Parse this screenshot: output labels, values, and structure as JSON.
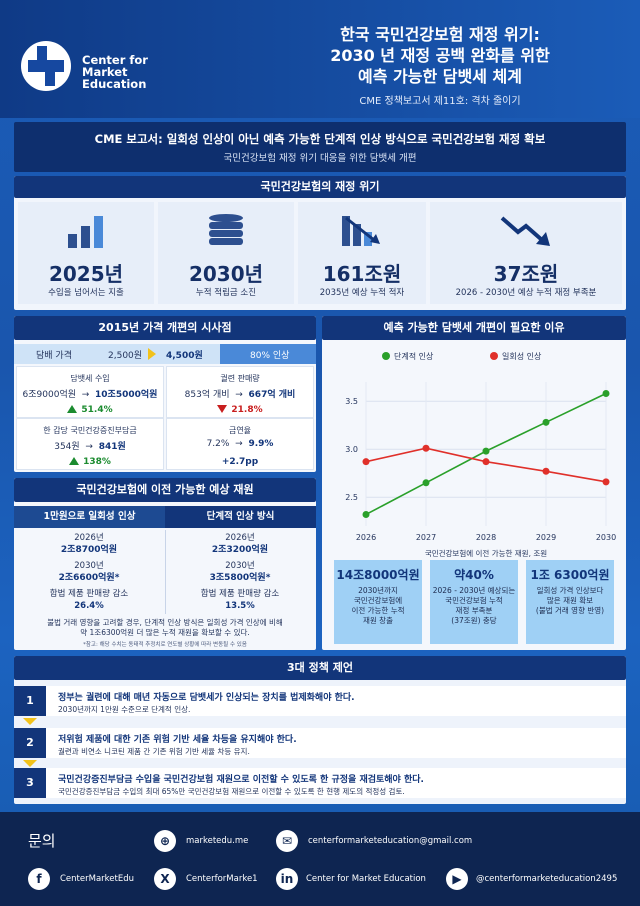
{
  "header": {
    "brand": [
      "Center for",
      "Market",
      "Education"
    ],
    "title_lines": [
      "한국 국민건강보험 재정 위기:",
      "2030 년 재정 공백 완화를 위한",
      "예측 가능한 담뱃세 체계"
    ],
    "subtitle": "CME 정책보고서 제11호: 격차 줄이기"
  },
  "banner": {
    "title": "CME 보고서: 일회성 인상이 아닌 예측 가능한 단계적 인상 방식으로 국민건강보험 재정 확보",
    "subtitle": "국민건강보험 재정 위기 대응을 위한 담뱃세 개편"
  },
  "crisis": {
    "heading": "국민건강보험의 재정 위기",
    "cards": [
      {
        "icon": "bar-chart-icon",
        "value": "2025년",
        "label": "수입을 넘어서는 지출"
      },
      {
        "icon": "coins-icon",
        "value": "2030년",
        "label": "누적 적립금 소진"
      },
      {
        "icon": "falling-bars-icon",
        "value": "161조원",
        "label": "2035년 예상 누적 적자"
      },
      {
        "icon": "downtrend-arrow-icon",
        "value": "37조원",
        "label": "2026 - 2030년 예상 누적 재정 부족분"
      }
    ]
  },
  "pricing": {
    "heading": "2015년 가격 개편의 시사점",
    "price_label": "담배 가격",
    "price_from": "2,500원",
    "price_to": "4,500원",
    "price_change": "80% 인상",
    "cells": [
      {
        "head": "담뱃세 수입",
        "from": "6조9000억원",
        "to": "10조5000억원",
        "change": "51.4%",
        "dir": "up"
      },
      {
        "head": "궐련 판매량",
        "from": "853억 개비",
        "to": "667억 개비",
        "change": "21.8%",
        "dir": "down"
      },
      {
        "head": "한 갑당 국민건강증진부담금",
        "from": "354원",
        "to": "841원",
        "change": "138%",
        "dir": "up"
      },
      {
        "head": "금연율",
        "from": "7.2%",
        "to": "9.9%",
        "change": "+2.7pp",
        "dir": "none"
      }
    ]
  },
  "revenue": {
    "heading": "국민건강보험에 이전 가능한 예상 재원",
    "col_left": "1만원으로 일회성 인상",
    "col_right": "단계적 인상 방식",
    "left": {
      "y1": "2026년",
      "v1": "2조8700억원",
      "y2": "2030년",
      "v2": "2조6600억원*",
      "note": "합법 제품 판매량 감소",
      "pct": "26.4%"
    },
    "right": {
      "y1": "2026년",
      "v1": "2조3200억원",
      "y2": "2030년",
      "v2": "3조5800억원*",
      "note": "합법 제품 판매량 감소",
      "pct": "13.5%"
    },
    "summary": [
      "불법 거래 영향을 고려할 경우, 단계적 인상 방식은 일회성 가격 인상에 비해",
      "약 1조6300억원 더 많은 누적 재원을 확보할 수 있다."
    ],
    "footnote": "*참고: 해당 수치는 동태적 추정치로 연도별 상황에 따라 변동될 수 있음"
  },
  "chart_data": {
    "type": "line",
    "title": "예측 가능한 담뱃세 개편이 필요한 이유",
    "xlabel": "국민건강보험에 이전 가능한 재원, 조원",
    "x": [
      2026,
      2027,
      2028,
      2029,
      2030
    ],
    "series": [
      {
        "name": "단계적 인상",
        "color": "#2aa02a",
        "values": [
          2.32,
          2.65,
          2.98,
          3.28,
          3.58
        ]
      },
      {
        "name": "일회성 인상",
        "color": "#e0302a",
        "values": [
          2.87,
          3.01,
          2.87,
          2.77,
          2.66
        ]
      }
    ],
    "yticks": [
      2.5,
      3.0,
      3.5
    ],
    "ylim": [
      2.2,
      3.7
    ],
    "grid": true,
    "legend": "top"
  },
  "kpis": [
    {
      "value": "14조8000억원",
      "desc": [
        "2030년까지",
        "국민건강보험에",
        "이전 가능한 누적",
        "재원 창출"
      ]
    },
    {
      "value": "약40%",
      "desc": [
        "2026 - 2030년 예상되는",
        "국민건강보험 누적",
        "재정 부족분",
        "(37조원) 충당"
      ]
    },
    {
      "value": "1조 6300억원",
      "desc": [
        "일회성 가격 인상보다",
        "많은 재원 확보",
        "(불법 거래 영향 반영)"
      ]
    }
  ],
  "policy": {
    "heading": "3대 정책 제언",
    "items": [
      {
        "num": "1",
        "title": "정부는 궐련에 대해 매년 자동으로 담뱃세가 인상되는 장치를 법제화해야 한다.",
        "desc": "2030년까지 1만원 수준으로 단계적 인상."
      },
      {
        "num": "2",
        "title": "저위험 제품에 대한 기존 위험 기반 세율 차등을 유지해야 한다.",
        "desc": "궐련과 비연소 니코틴 제품 간 기존 위험 기반 세율 차등 유지."
      },
      {
        "num": "3",
        "title": "국민건강증진부담금 수입을 국민건강보험 재원으로 이전할 수 있도록 한 규정을 재검토해야 한다.",
        "desc": "국민건강증진부담금 수입의 최대 65%만 국민건강보험 재원으로 이전할 수 있도록 한 현행 제도의 적정성 검토."
      }
    ]
  },
  "footer": {
    "label": "문의",
    "website": "marketedu.me",
    "email": "centerformarketeducation@gmail.com",
    "facebook": "CenterMarketEdu",
    "x": "CenterforMarke1",
    "linkedin": "Center for Market Education",
    "youtube": "@centerformarketeducation2495"
  }
}
